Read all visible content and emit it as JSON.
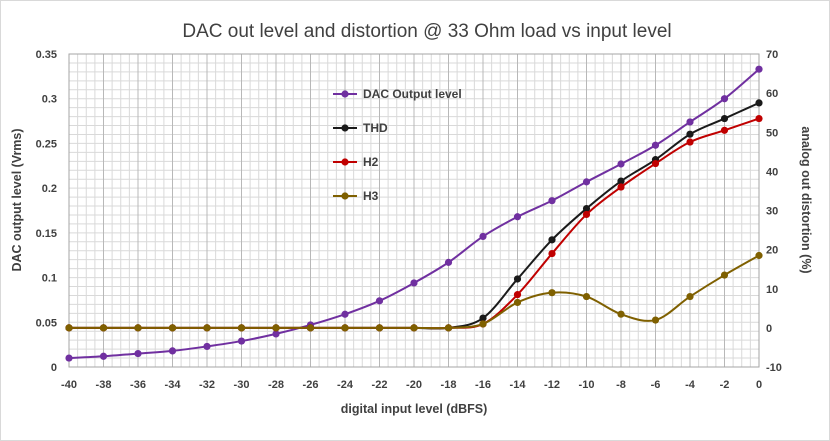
{
  "chart_data": {
    "type": "line",
    "title": "DAC out level and distortion @ 33 Ohm load vs input level",
    "xlabel": "digital input level (dBFS)",
    "ylabel": "DAC output level (Vrms)",
    "y2label": "analog out distortion (%)",
    "xlim": [
      -40,
      0
    ],
    "ylim": [
      0,
      0.35
    ],
    "y2lim": [
      -10,
      70
    ],
    "x_ticks": [
      "-40",
      "-38",
      "-36",
      "-34",
      "-32",
      "-30",
      "-28",
      "-26",
      "-24",
      "-22",
      "-20",
      "-18",
      "-16",
      "-14",
      "-12",
      "-10",
      "-8",
      "-6",
      "-4",
      "-2",
      "0"
    ],
    "y_ticks": [
      "0",
      "0.05",
      "0.1",
      "0.15",
      "0.2",
      "0.25",
      "0.3",
      "0.35"
    ],
    "y2_ticks": [
      "-10",
      "0",
      "10",
      "20",
      "30",
      "40",
      "50",
      "60",
      "70"
    ],
    "grid": true,
    "legend_position": "inside-top-center",
    "x": [
      -40,
      -38,
      -36,
      -34,
      -32,
      -30,
      -28,
      -26,
      -24,
      -22,
      -20,
      -18,
      -16,
      -14,
      -12,
      -10,
      -8,
      -6,
      -4,
      -2,
      0
    ],
    "series": [
      {
        "name": "DAC Output level",
        "axis": "left",
        "color": "#7030A0",
        "values": [
          0.01,
          0.012,
          0.015,
          0.018,
          0.023,
          0.029,
          0.037,
          0.047,
          0.059,
          0.074,
          0.094,
          0.117,
          0.146,
          0.168,
          0.186,
          0.207,
          0.227,
          0.248,
          0.274,
          0.3,
          0.333
        ]
      },
      {
        "name": "THD",
        "axis": "right",
        "color": "#1a1a1a",
        "values": [
          0,
          0,
          0,
          0,
          0,
          0,
          0,
          0,
          0,
          0,
          0,
          0,
          2.5,
          12.5,
          22.5,
          30.5,
          37.5,
          43,
          49.5,
          53.5,
          57.5
        ]
      },
      {
        "name": "H2",
        "axis": "right",
        "color": "#C00000",
        "values": [
          0,
          0,
          0,
          0,
          0,
          0,
          0,
          0,
          0,
          0,
          0,
          0,
          1,
          8.5,
          19,
          29,
          36,
          42,
          47.5,
          50.5,
          53.5
        ]
      },
      {
        "name": "H3",
        "axis": "right",
        "color": "#7F6000",
        "values": [
          0,
          0,
          0,
          0,
          0,
          0,
          0,
          0,
          0,
          0,
          0,
          0,
          1,
          6.5,
          9,
          8,
          3.5,
          2,
          8,
          13.5,
          18.5
        ]
      }
    ]
  }
}
